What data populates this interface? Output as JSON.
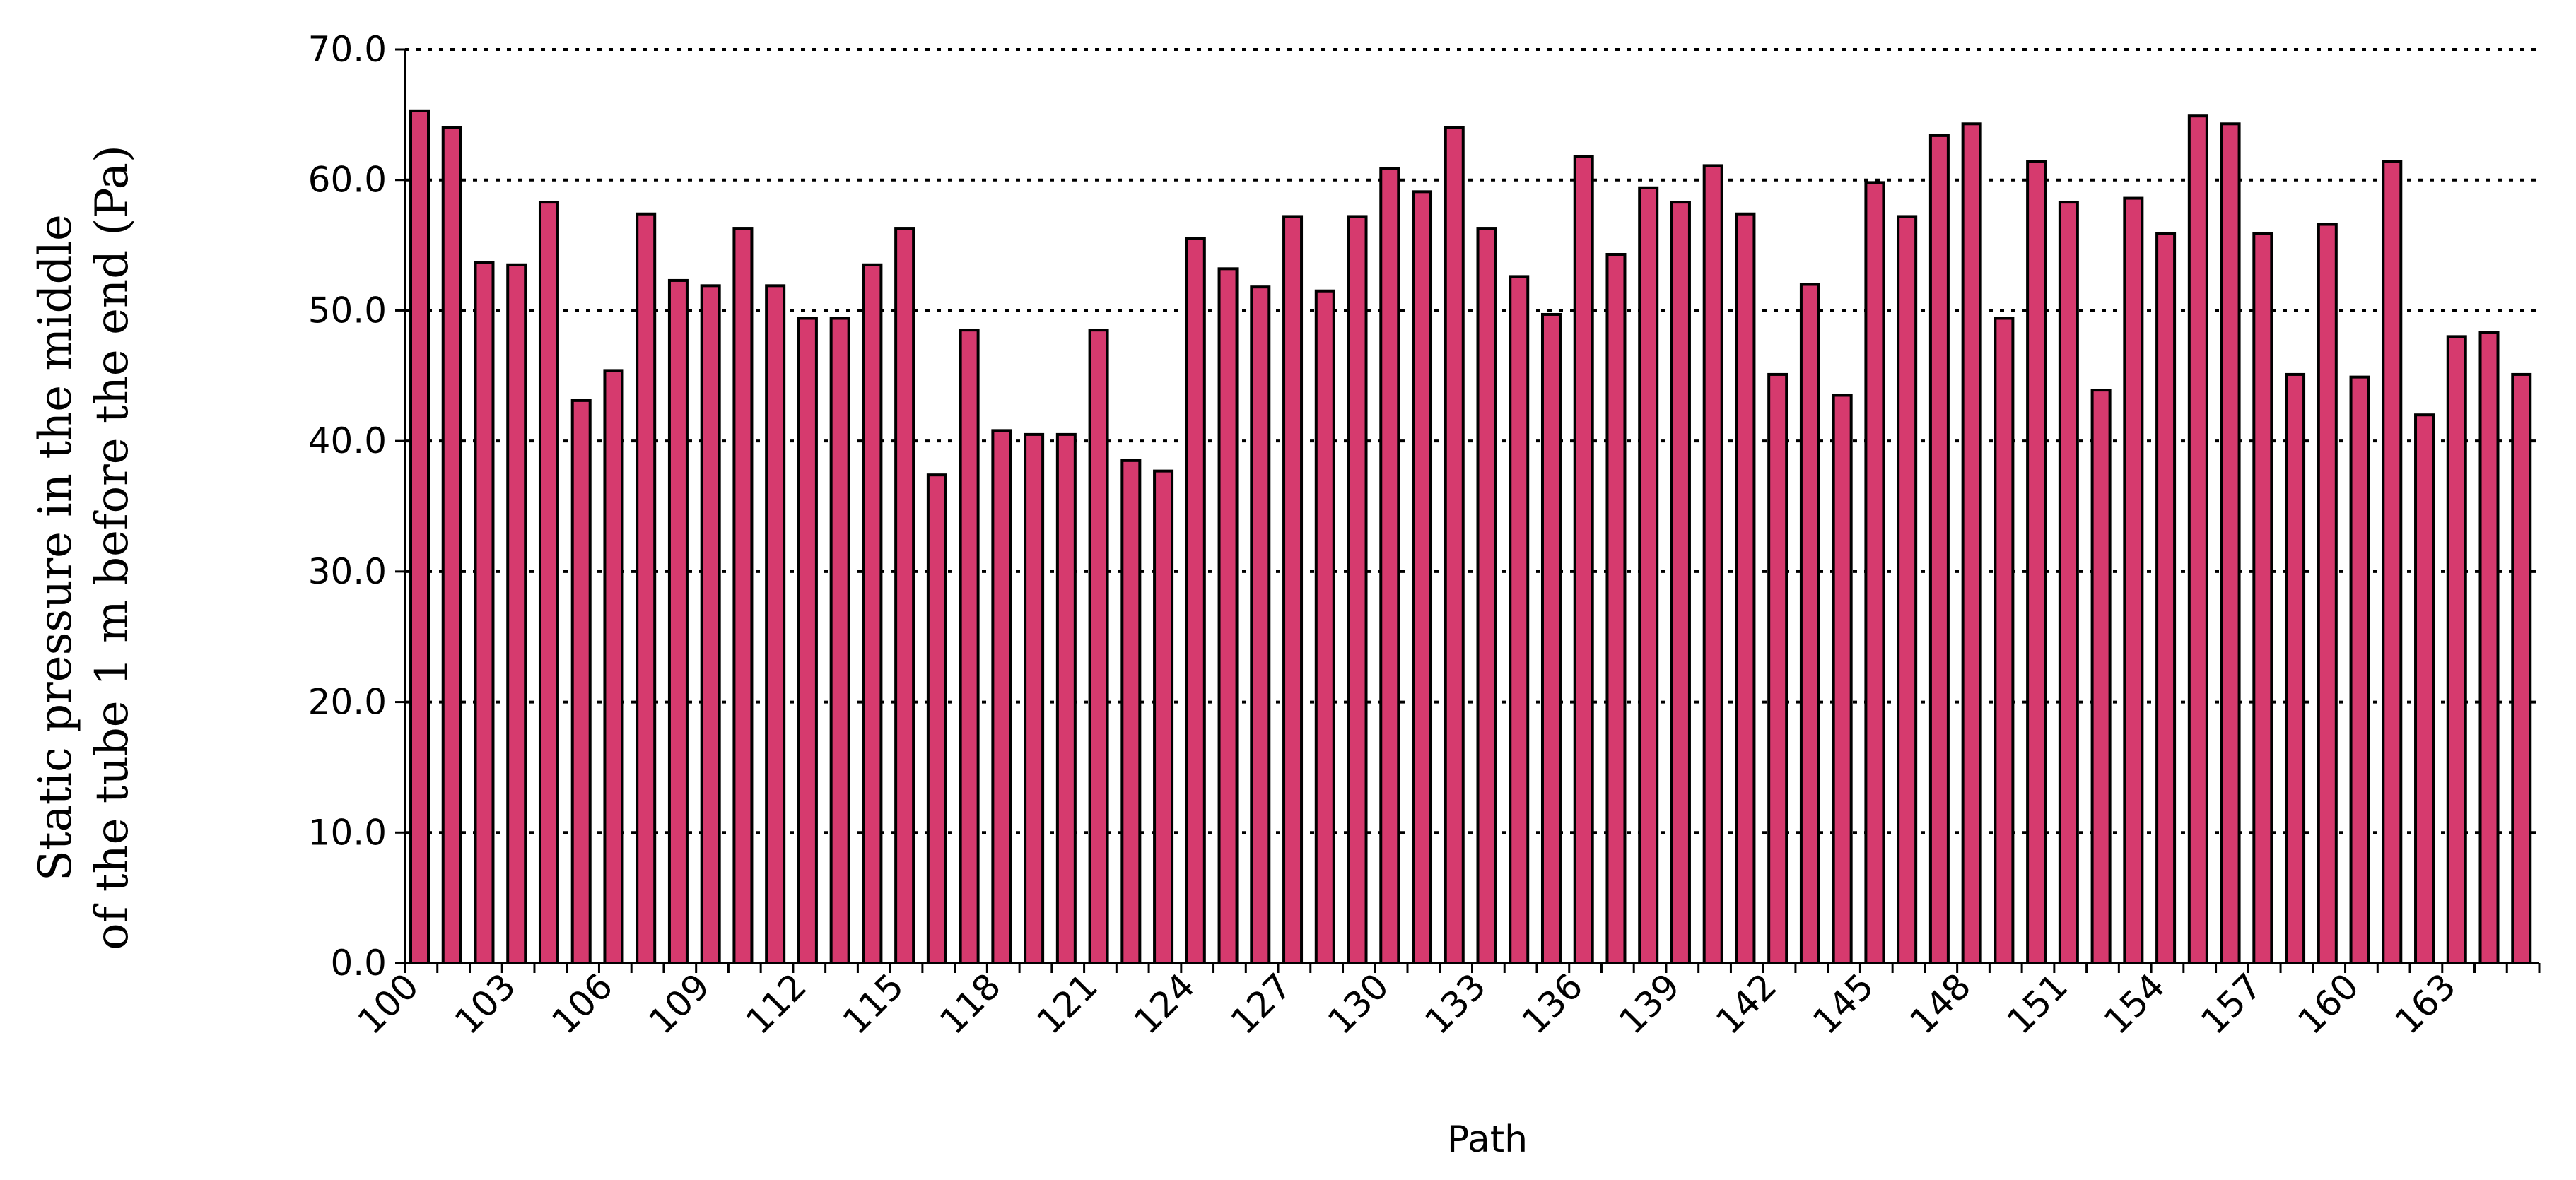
{
  "chart_data": {
    "type": "bar",
    "xlabel": "Path",
    "ylabel_lines": [
      "Static pressure in the middle",
      "of the tube 1 m before the end (Pa)"
    ],
    "ylim": [
      0,
      70
    ],
    "yticks": [
      "0.0",
      "10.0",
      "20.0",
      "30.0",
      "40.0",
      "50.0",
      "60.0",
      "70.0"
    ],
    "grid": "horizontal dotted",
    "legend": "none",
    "bar_color": "#d63a6e",
    "edge_color": "#000000",
    "x_tick_labels": [
      "100",
      "103",
      "106",
      "109",
      "112",
      "115",
      "118",
      "121",
      "124",
      "127",
      "130",
      "133",
      "136",
      "139",
      "142",
      "145",
      "148",
      "151",
      "154",
      "157",
      "160",
      "163"
    ],
    "categories": [
      100,
      101,
      102,
      103,
      104,
      105,
      106,
      107,
      108,
      109,
      110,
      111,
      112,
      113,
      114,
      115,
      116,
      117,
      118,
      119,
      120,
      121,
      122,
      123,
      124,
      125,
      126,
      127,
      128,
      129,
      130,
      131,
      132,
      133,
      134,
      135,
      136,
      137,
      138,
      139,
      140,
      141,
      142,
      143,
      144,
      145,
      146,
      147,
      148,
      149,
      150,
      151,
      152,
      153,
      154,
      155,
      156,
      157,
      158,
      159,
      160,
      161,
      162,
      163,
      164,
      165
    ],
    "values": [
      65.3,
      64.0,
      53.7,
      53.5,
      58.3,
      43.1,
      45.4,
      57.4,
      52.3,
      51.9,
      56.3,
      51.9,
      49.4,
      49.4,
      53.5,
      56.3,
      37.4,
      48.5,
      40.8,
      40.5,
      40.5,
      48.5,
      38.5,
      37.7,
      55.5,
      53.2,
      51.8,
      57.2,
      51.5,
      57.2,
      60.9,
      59.1,
      64.0,
      56.3,
      52.6,
      49.7,
      61.8,
      54.3,
      59.4,
      58.3,
      61.1,
      57.4,
      45.1,
      52.0,
      43.5,
      59.8,
      57.2,
      63.4,
      64.3,
      49.4,
      61.4,
      58.3,
      43.9,
      58.6,
      55.9,
      64.9,
      64.3,
      55.9,
      45.1,
      56.6,
      44.9,
      61.4,
      42.0,
      48.0,
      48.3,
      45.1
    ]
  }
}
